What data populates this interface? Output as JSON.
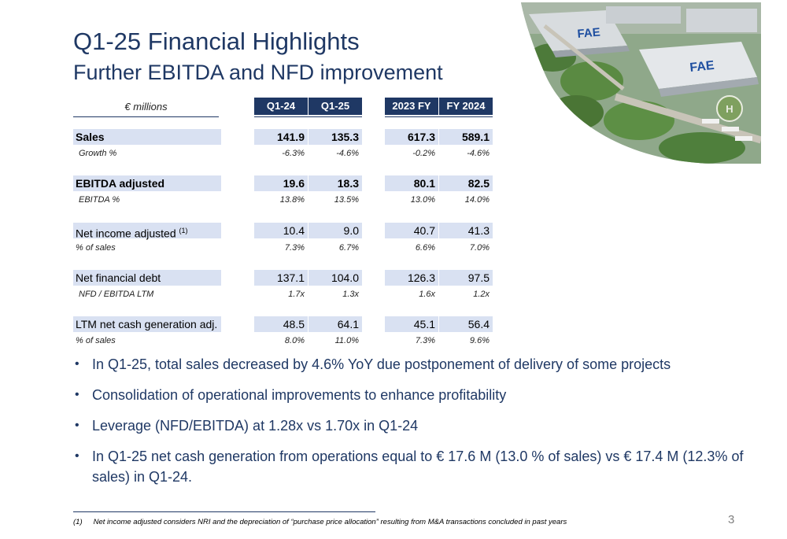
{
  "title": "Q1-25 Financial Highlights",
  "subtitle": "Further EBITDA and NFD improvement",
  "table": {
    "unit": "€ millions",
    "columns": [
      "Q1-24",
      "Q1-25",
      "2023 FY",
      "FY 2024"
    ],
    "rows": [
      {
        "label": "Sales",
        "values": [
          "141.9",
          "135.3",
          "617.3",
          "589.1"
        ]
      },
      {
        "label": "Growth %",
        "values": [
          "-6.3%",
          "-4.6%",
          "-0.2%",
          "-4.6%"
        ]
      },
      {
        "label": "EBITDA adjusted",
        "values": [
          "19.6",
          "18.3",
          "80.1",
          "82.5"
        ]
      },
      {
        "label": "EBITDA %",
        "values": [
          "13.8%",
          "13.5%",
          "13.0%",
          "14.0%"
        ]
      },
      {
        "label": "Net income adjusted",
        "sup": "(1)",
        "values": [
          "10.4",
          "9.0",
          "40.7",
          "41.3"
        ]
      },
      {
        "label": "% of sales",
        "values": [
          "7.3%",
          "6.7%",
          "6.6%",
          "7.0%"
        ]
      },
      {
        "label": "Net financial debt",
        "values": [
          "137.1",
          "104.0",
          "126.3",
          "97.5"
        ]
      },
      {
        "label": "NFD / EBITDA LTM",
        "values": [
          "1.7x",
          "1.3x",
          "1.6x",
          "1.2x"
        ]
      },
      {
        "label": "LTM net cash generation adj.",
        "values": [
          "48.5",
          "64.1",
          "45.1",
          "56.4"
        ]
      },
      {
        "label": "% of sales",
        "values": [
          "8.0%",
          "11.0%",
          "7.3%",
          "9.6%"
        ]
      }
    ]
  },
  "bullets": [
    "In  Q1-25, total sales decreased by  4.6% YoY due postponement of  delivery of some projects",
    "Consolidation of operational improvements to enhance profitability",
    "Leverage (NFD/EBITDA) at 1.28x  vs 1.70x  in  Q1-24",
    "In Q1-25 net cash generation from operations equal to € 17.6 M (13.0 % of sales) vs € 17.4 M (12.3% of sales) in  Q1-24."
  ],
  "footnote": {
    "number": "(1)",
    "text": "Net income adjusted considers NRI and  the depreciation of “purchase price allocation” resulting from M&A transactions concluded in past years"
  },
  "page_number": "3",
  "logo_text": "FAE",
  "colors": {
    "navy": "#1f3864",
    "row_highlight": "#d9e1f2"
  }
}
